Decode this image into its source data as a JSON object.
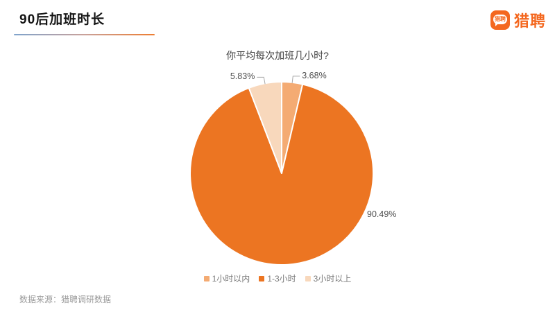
{
  "header": {
    "title": "90后加班时长"
  },
  "logo": {
    "icon_text": "猎聘",
    "brand_text": "猎聘"
  },
  "chart_data": {
    "type": "pie",
    "title": "你平均每次加班几小时?",
    "categories": [
      "1小时以内",
      "1-3小时",
      "3小时以上"
    ],
    "values": [
      3.68,
      90.49,
      5.83
    ],
    "unit": "%",
    "labels": [
      "3.68%",
      "90.49%",
      "5.83%"
    ],
    "colors": [
      "#F4AB73",
      "#EC7522",
      "#F8D8BC"
    ],
    "legend_position": "bottom",
    "label_position": "outside"
  },
  "footer": {
    "source": "数据来源：猎聘调研数据"
  },
  "theme": {
    "brand_orange": "#F4671E",
    "underline_gradient": [
      "#7FA3CC",
      "#C9A29B",
      "#ED7D31"
    ],
    "leader_line_color": "#A8A8A8"
  }
}
